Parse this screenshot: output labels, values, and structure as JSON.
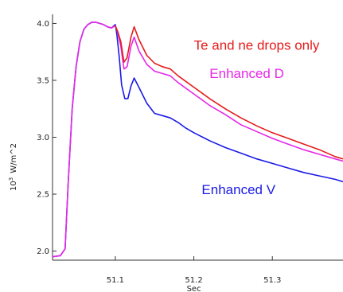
{
  "chart_data": {
    "type": "line",
    "xlabel": "Sec",
    "ylabel": "10^3  W/m^2",
    "ylabel_parts": {
      "base": "10",
      "exp": "3",
      "unit": "W/m^2"
    },
    "xlim": [
      51.02,
      51.39
    ],
    "ylim": [
      1.92,
      4.08
    ],
    "x_ticks": [
      51.1,
      51.2,
      51.3
    ],
    "x_tick_labels": [
      "51.1",
      "51.2",
      "51.3"
    ],
    "y_ticks": [
      2.0,
      2.5,
      3.0,
      3.5,
      4.0
    ],
    "y_tick_labels": [
      "2.0",
      "2.5",
      "3.0",
      "3.5",
      "4.0"
    ],
    "grid": false,
    "series": [
      {
        "name": "Enhanced  V",
        "color": "#1a1ae6",
        "x": [
          51.02,
          51.03,
          51.036,
          51.04,
          51.045,
          51.05,
          51.055,
          51.06,
          51.065,
          51.07,
          51.075,
          51.08,
          51.085,
          51.09,
          51.095,
          51.1,
          51.102,
          51.105,
          51.108,
          51.112,
          51.116,
          51.12,
          51.124,
          51.13,
          51.14,
          51.15,
          51.16,
          51.17,
          51.18,
          51.19,
          51.2,
          51.22,
          51.24,
          51.26,
          51.28,
          51.3,
          51.32,
          51.34,
          51.36,
          51.38,
          51.39
        ],
        "y": [
          1.95,
          1.96,
          2.02,
          2.6,
          3.25,
          3.62,
          3.84,
          3.95,
          3.99,
          4.01,
          4.01,
          4.0,
          3.99,
          3.97,
          3.96,
          3.99,
          3.9,
          3.7,
          3.46,
          3.34,
          3.34,
          3.45,
          3.52,
          3.44,
          3.3,
          3.21,
          3.19,
          3.17,
          3.13,
          3.08,
          3.04,
          2.97,
          2.91,
          2.86,
          2.81,
          2.77,
          2.73,
          2.69,
          2.66,
          2.63,
          2.61
        ]
      },
      {
        "name": "Enhanced  D",
        "color": "#e627e6",
        "x": [
          51.02,
          51.03,
          51.036,
          51.04,
          51.045,
          51.05,
          51.055,
          51.06,
          51.065,
          51.07,
          51.075,
          51.08,
          51.085,
          51.09,
          51.095,
          51.1,
          51.103,
          51.107,
          51.111,
          51.115,
          51.12,
          51.124,
          51.13,
          51.14,
          51.15,
          51.16,
          51.17,
          51.18,
          51.2,
          51.22,
          51.24,
          51.26,
          51.28,
          51.3,
          51.32,
          51.34,
          51.36,
          51.38,
          51.39
        ],
        "y": [
          1.95,
          1.96,
          2.02,
          2.6,
          3.25,
          3.62,
          3.84,
          3.95,
          3.99,
          4.01,
          4.01,
          4.0,
          3.99,
          3.97,
          3.96,
          3.98,
          3.92,
          3.8,
          3.6,
          3.62,
          3.8,
          3.88,
          3.76,
          3.64,
          3.58,
          3.56,
          3.54,
          3.48,
          3.38,
          3.28,
          3.2,
          3.11,
          3.05,
          2.99,
          2.94,
          2.89,
          2.85,
          2.81,
          2.79
        ]
      },
      {
        "name": "Te and ne drops only",
        "color": "#e61a1a",
        "x": [
          51.1,
          51.103,
          51.107,
          51.111,
          51.115,
          51.12,
          51.124,
          51.13,
          51.14,
          51.15,
          51.16,
          51.17,
          51.18,
          51.2,
          51.22,
          51.24,
          51.26,
          51.28,
          51.3,
          51.32,
          51.34,
          51.36,
          51.38,
          51.39
        ],
        "y": [
          3.98,
          3.93,
          3.84,
          3.66,
          3.7,
          3.88,
          3.97,
          3.86,
          3.72,
          3.65,
          3.62,
          3.6,
          3.54,
          3.44,
          3.34,
          3.25,
          3.17,
          3.1,
          3.04,
          2.99,
          2.94,
          2.89,
          2.83,
          2.81
        ]
      }
    ],
    "annotations": [
      {
        "text": "Te and ne drops only",
        "color": "#e61a1a",
        "x": 51.2,
        "y": 3.77
      },
      {
        "text": "Enhanced  D",
        "color": "#e627e6",
        "x": 51.22,
        "y": 3.52
      },
      {
        "text": "Enhanced  V",
        "color": "#1a1ae6",
        "x": 51.21,
        "y": 2.5
      }
    ]
  }
}
